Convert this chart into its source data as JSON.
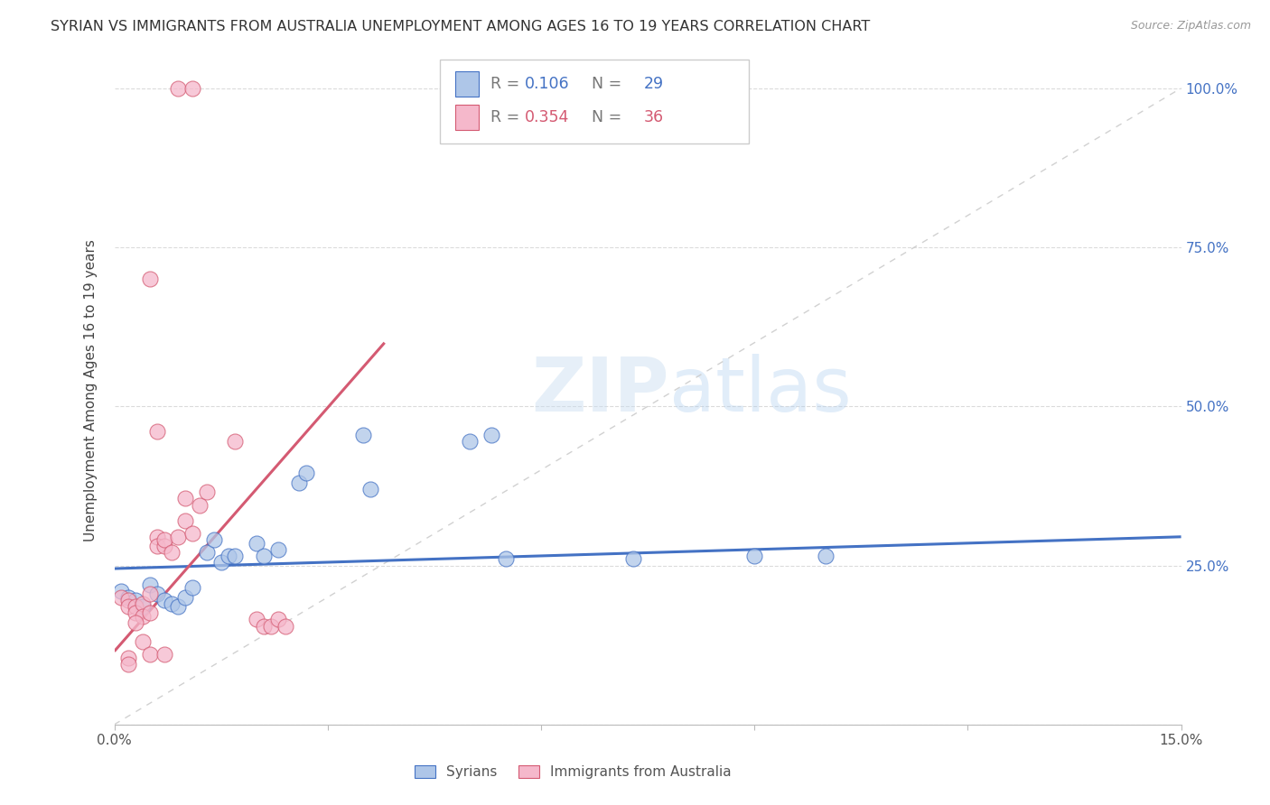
{
  "title": "SYRIAN VS IMMIGRANTS FROM AUSTRALIA UNEMPLOYMENT AMONG AGES 16 TO 19 YEARS CORRELATION CHART",
  "source": "Source: ZipAtlas.com",
  "ylabel": "Unemployment Among Ages 16 to 19 years",
  "xlim": [
    0.0,
    0.15
  ],
  "ylim": [
    0.0,
    1.05
  ],
  "xticks": [
    0.0,
    0.03,
    0.06,
    0.09,
    0.12,
    0.15
  ],
  "xtick_labels": [
    "0.0%",
    "",
    "",
    "",
    "",
    "15.0%"
  ],
  "ytick_labels_right": [
    "",
    "25.0%",
    "50.0%",
    "75.0%",
    "100.0%"
  ],
  "yticks_right": [
    0.0,
    0.25,
    0.5,
    0.75,
    1.0
  ],
  "syrians_R": 0.106,
  "syrians_N": 29,
  "australia_R": 0.354,
  "australia_N": 36,
  "syrians_color": "#aec6e8",
  "australia_color": "#f5b8cb",
  "syrians_line_color": "#4472c4",
  "australia_line_color": "#d45a72",
  "watermark_color": "#ddeeff",
  "syrians_points": [
    [
      0.001,
      0.21
    ],
    [
      0.002,
      0.2
    ],
    [
      0.003,
      0.195
    ],
    [
      0.004,
      0.185
    ],
    [
      0.005,
      0.22
    ],
    [
      0.006,
      0.205
    ],
    [
      0.007,
      0.195
    ],
    [
      0.008,
      0.19
    ],
    [
      0.009,
      0.185
    ],
    [
      0.01,
      0.2
    ],
    [
      0.011,
      0.215
    ],
    [
      0.013,
      0.27
    ],
    [
      0.014,
      0.29
    ],
    [
      0.015,
      0.255
    ],
    [
      0.016,
      0.265
    ],
    [
      0.017,
      0.265
    ],
    [
      0.02,
      0.285
    ],
    [
      0.021,
      0.265
    ],
    [
      0.023,
      0.275
    ],
    [
      0.026,
      0.38
    ],
    [
      0.027,
      0.395
    ],
    [
      0.035,
      0.455
    ],
    [
      0.036,
      0.37
    ],
    [
      0.05,
      0.445
    ],
    [
      0.053,
      0.455
    ],
    [
      0.055,
      0.26
    ],
    [
      0.073,
      0.26
    ],
    [
      0.09,
      0.265
    ],
    [
      0.1,
      0.265
    ]
  ],
  "australia_points": [
    [
      0.001,
      0.2
    ],
    [
      0.002,
      0.195
    ],
    [
      0.002,
      0.185
    ],
    [
      0.003,
      0.185
    ],
    [
      0.003,
      0.175
    ],
    [
      0.004,
      0.19
    ],
    [
      0.004,
      0.17
    ],
    [
      0.005,
      0.205
    ],
    [
      0.005,
      0.175
    ],
    [
      0.006,
      0.295
    ],
    [
      0.006,
      0.28
    ],
    [
      0.007,
      0.28
    ],
    [
      0.007,
      0.29
    ],
    [
      0.008,
      0.27
    ],
    [
      0.009,
      0.295
    ],
    [
      0.01,
      0.32
    ],
    [
      0.01,
      0.355
    ],
    [
      0.011,
      0.3
    ],
    [
      0.012,
      0.345
    ],
    [
      0.013,
      0.365
    ],
    [
      0.017,
      0.445
    ],
    [
      0.02,
      0.165
    ],
    [
      0.021,
      0.155
    ],
    [
      0.022,
      0.155
    ],
    [
      0.023,
      0.165
    ],
    [
      0.024,
      0.155
    ],
    [
      0.009,
      1.0
    ],
    [
      0.011,
      1.0
    ],
    [
      0.005,
      0.7
    ],
    [
      0.006,
      0.46
    ],
    [
      0.003,
      0.16
    ],
    [
      0.004,
      0.13
    ],
    [
      0.002,
      0.105
    ],
    [
      0.002,
      0.095
    ],
    [
      0.005,
      0.11
    ],
    [
      0.007,
      0.11
    ]
  ],
  "syrians_line": [
    0.0,
    0.15,
    0.245,
    0.295
  ],
  "australia_line": [
    0.0,
    0.038,
    0.115,
    0.6
  ],
  "diagonal_line": [
    0.0,
    0.15,
    0.0,
    1.0
  ]
}
